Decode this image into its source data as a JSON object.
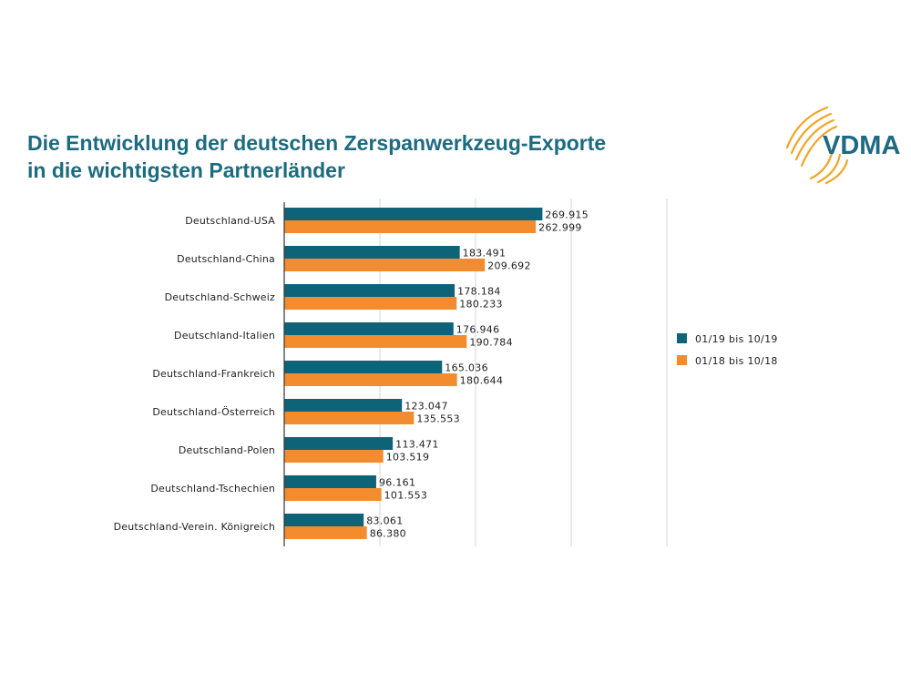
{
  "title": {
    "line1": "Die Entwicklung der deutschen Zerspanwerkzeug-Exporte",
    "line2": "in die wichtigsten Partnerländer"
  },
  "logo": {
    "text": "VDMA"
  },
  "colors": {
    "title": "#1c6b80",
    "series_2019": "#0e6379",
    "series_2018": "#f28c2e",
    "logo_text": "#1d6a85",
    "logo_arcs": "#f2a524"
  },
  "chart_data": {
    "type": "bar",
    "orientation": "horizontal",
    "categories": [
      "Deutschland-USA",
      "Deutschland-China",
      "Deutschland-Schweiz",
      "Deutschland-Italien",
      "Deutschland-Frankreich",
      "Deutschland-Österreich",
      "Deutschland-Polen",
      "Deutschland-Tschechien",
      "Deutschland-Verein. Königreich"
    ],
    "series": [
      {
        "name": "01/19 bis 10/19",
        "color": "#0e6379",
        "values": [
          269915,
          183491,
          178184,
          176946,
          165036,
          123047,
          113471,
          96161,
          83061
        ],
        "labels": [
          "269.915",
          "183.491",
          "178.184",
          "176.946",
          "165.036",
          "123.047",
          "113.471",
          "96.161",
          "83.061"
        ]
      },
      {
        "name": "01/18 bis 10/18",
        "color": "#f28c2e",
        "values": [
          262999,
          209692,
          180233,
          190784,
          180644,
          135553,
          103519,
          101553,
          86380
        ],
        "labels": [
          "262.999",
          "209.692",
          "180.233",
          "190.784",
          "180.644",
          "135.553",
          "103.519",
          "101.553",
          "86.380"
        ]
      }
    ],
    "xlim": [
      0,
      400000
    ],
    "x_gridlines": [
      100000,
      200000,
      300000,
      400000
    ],
    "grid": true,
    "legend_position": "right"
  }
}
